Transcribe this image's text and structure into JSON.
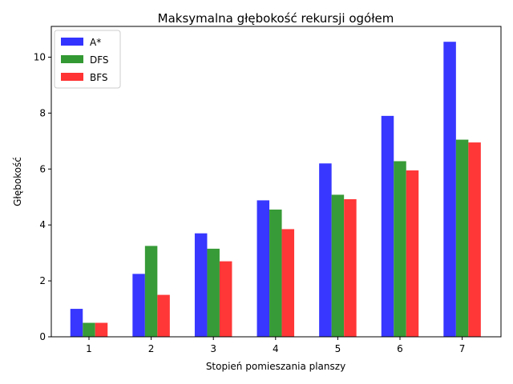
{
  "chart_data": {
    "type": "bar",
    "title": "Maksymalna głębokość rekursji ogółem",
    "xlabel": "Stopień pomieszania planszy",
    "ylabel": "Głębokość",
    "categories": [
      "1",
      "2",
      "3",
      "4",
      "5",
      "6",
      "7"
    ],
    "ylim": [
      0,
      11.1
    ],
    "yticks": [
      0,
      2,
      4,
      6,
      8,
      10
    ],
    "grid": false,
    "legend_position": "top-left",
    "series": [
      {
        "name": "A*",
        "color": "#3333ff",
        "values": [
          1.0,
          2.25,
          3.7,
          4.88,
          6.2,
          7.9,
          10.55
        ]
      },
      {
        "name": "DFS",
        "color": "#339933",
        "values": [
          0.5,
          3.25,
          3.15,
          4.55,
          5.08,
          6.28,
          7.05
        ]
      },
      {
        "name": "BFS",
        "color": "#ff3333",
        "values": [
          0.5,
          1.5,
          2.7,
          3.85,
          4.92,
          5.95,
          6.95
        ]
      }
    ]
  }
}
